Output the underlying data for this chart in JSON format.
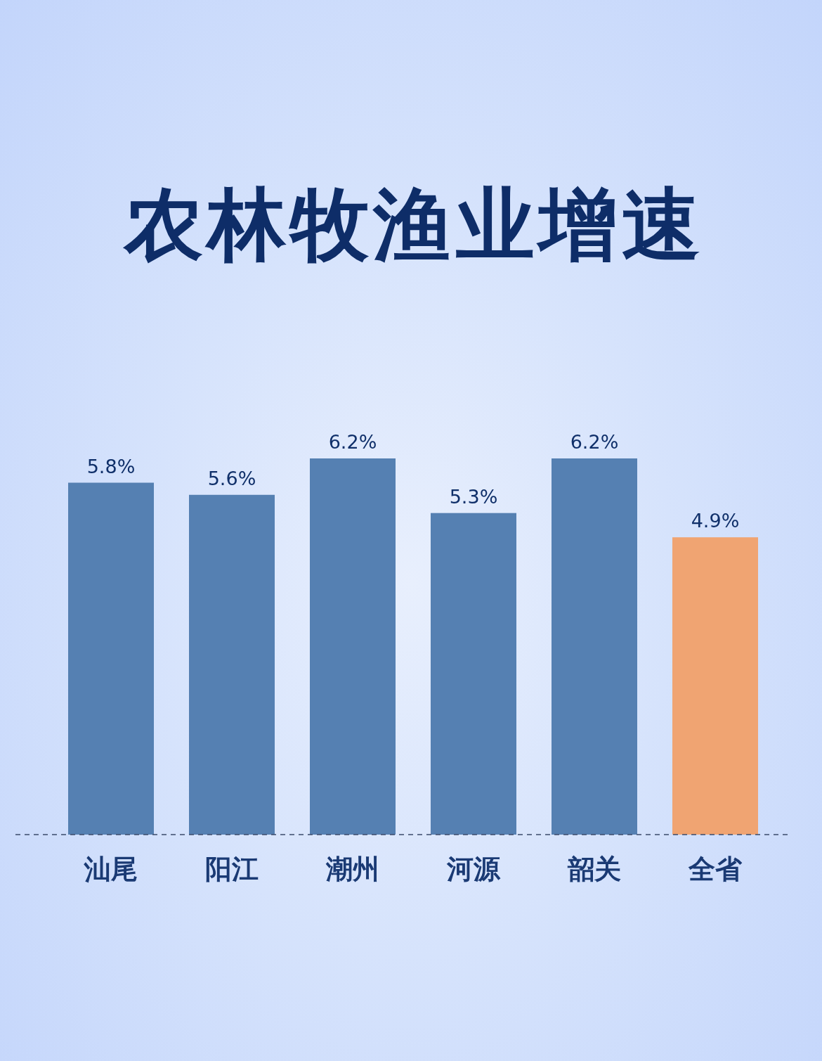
{
  "chart_data": {
    "type": "bar",
    "title": "农林牧渔业增速",
    "categories": [
      "汕尾",
      "阳江",
      "潮州",
      "河源",
      "韶关",
      "全省"
    ],
    "values": [
      5.8,
      5.6,
      6.2,
      5.3,
      6.2,
      4.9
    ],
    "value_labels": [
      "5.8%",
      "5.6%",
      "6.2%",
      "5.3%",
      "6.2%",
      "4.9%"
    ],
    "colors": [
      "#5580b2",
      "#5580b2",
      "#5580b2",
      "#5580b2",
      "#5580b2",
      "#f0a472"
    ],
    "tick_labels": "x"
  }
}
